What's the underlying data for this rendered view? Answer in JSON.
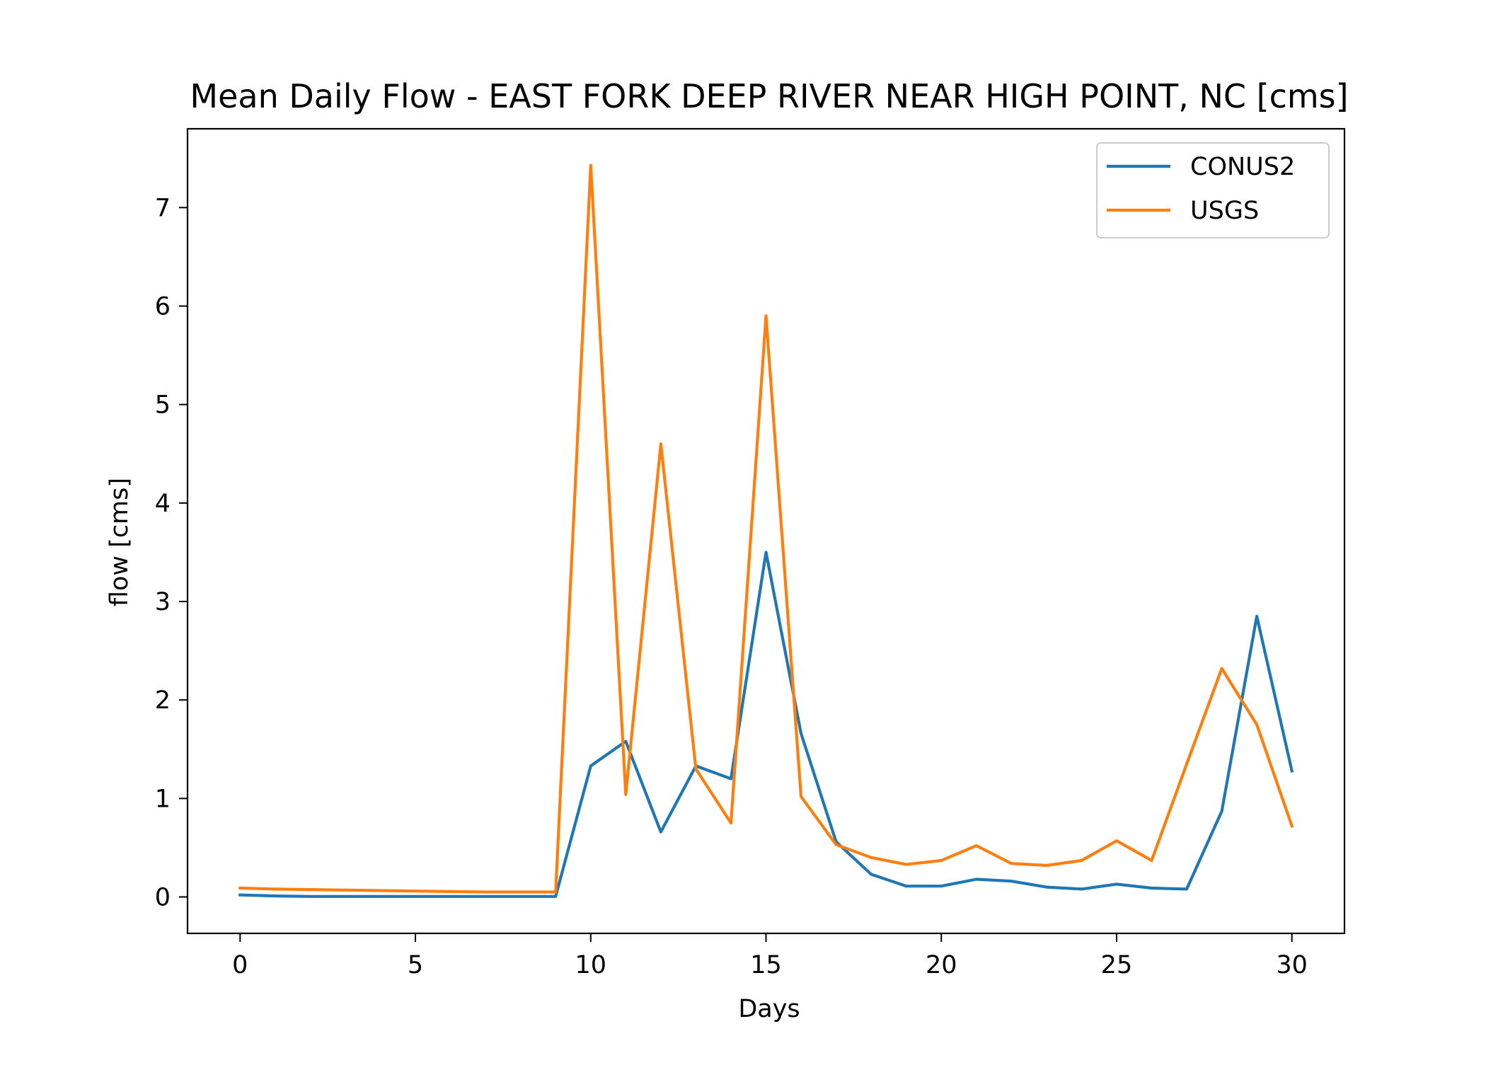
{
  "chart_data": {
    "type": "line",
    "title": "Mean Daily Flow - EAST FORK DEEP RIVER NEAR HIGH POINT, NC [cms]",
    "xlabel": "Days",
    "ylabel": "flow [cms]",
    "xlim": [
      -1.5,
      31.5
    ],
    "ylim": [
      -0.37,
      7.8
    ],
    "xticks": [
      0,
      5,
      10,
      15,
      20,
      25,
      30
    ],
    "yticks": [
      0,
      1,
      2,
      3,
      4,
      5,
      6,
      7
    ],
    "grid": false,
    "legend_position": "top-right",
    "x": [
      0,
      1,
      2,
      3,
      4,
      5,
      6,
      7,
      8,
      9,
      10,
      11,
      12,
      13,
      14,
      15,
      16,
      17,
      18,
      19,
      20,
      21,
      22,
      23,
      24,
      25,
      26,
      27,
      28,
      29,
      30
    ],
    "series": [
      {
        "name": "CONUS2",
        "color": "#1f77b4",
        "values": [
          0.02,
          0.01,
          0.005,
          0.005,
          0.005,
          0.005,
          0.005,
          0.005,
          0.005,
          0.005,
          1.33,
          1.58,
          0.66,
          1.33,
          1.2,
          3.5,
          1.66,
          0.56,
          0.23,
          0.11,
          0.11,
          0.18,
          0.16,
          0.1,
          0.08,
          0.13,
          0.09,
          0.08,
          0.87,
          2.85,
          1.28
        ]
      },
      {
        "name": "USGS",
        "color": "#ff7f0e",
        "values": [
          0.09,
          0.08,
          0.075,
          0.07,
          0.065,
          0.06,
          0.055,
          0.05,
          0.05,
          0.05,
          7.43,
          1.04,
          4.6,
          1.3,
          0.75,
          5.9,
          1.02,
          0.53,
          0.4,
          0.33,
          0.37,
          0.52,
          0.34,
          0.32,
          0.37,
          0.57,
          0.37,
          1.35,
          2.32,
          1.75,
          0.72
        ]
      }
    ]
  }
}
